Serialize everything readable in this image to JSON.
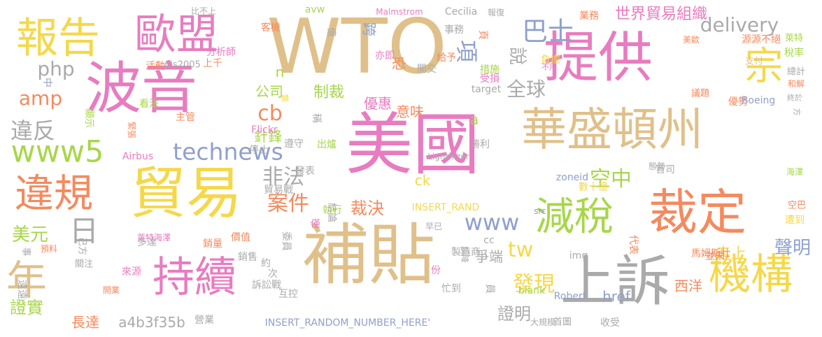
{
  "palette": {
    "pink": "#e87cc0",
    "tan": "#e0c08a",
    "orange": "#f48a5e",
    "gray": "#aaaaaa",
    "blue": "#8fa0cc",
    "yellow": "#f5d84a",
    "green": "#a8d64a"
  },
  "words": [
    {
      "text": "WTO",
      "color": "tan"
    },
    {
      "text": "美國",
      "color": "pink"
    },
    {
      "text": "波音",
      "color": "pink"
    },
    {
      "text": "補貼",
      "color": "tan"
    },
    {
      "text": "提供",
      "color": "pink"
    },
    {
      "text": "上訴",
      "color": "gray"
    },
    {
      "text": "裁定",
      "color": "orange"
    },
    {
      "text": "貿易",
      "color": "yellow"
    },
    {
      "text": "華盛頓州",
      "color": "tan"
    },
    {
      "text": "報告",
      "color": "yellow"
    },
    {
      "text": "歐盟",
      "color": "pink"
    },
    {
      "text": "持續",
      "color": "pink"
    },
    {
      "text": "年",
      "color": "tan"
    },
    {
      "text": "機構",
      "color": "yellow"
    },
    {
      "text": "違規",
      "color": "orange"
    },
    {
      "text": "減稅",
      "color": "green"
    },
    {
      "text": "www5",
      "color": "green"
    },
    {
      "text": "technews",
      "color": "blue"
    },
    {
      "text": "delivery",
      "color": "gray"
    },
    {
      "text": "宗",
      "color": "yellow"
    },
    {
      "text": "巴士",
      "color": "blue"
    },
    {
      "text": "日",
      "color": "gray"
    },
    {
      "text": "www",
      "color": "blue"
    },
    {
      "text": "php",
      "color": "gray"
    },
    {
      "text": "amp",
      "color": "orange"
    },
    {
      "text": "cb",
      "color": "orange"
    },
    {
      "text": "違反",
      "color": "gray"
    },
    {
      "text": "非法",
      "color": "gray"
    },
    {
      "text": "案件",
      "color": "orange"
    },
    {
      "text": "空中",
      "color": "green"
    },
    {
      "text": "tw",
      "color": "yellow"
    },
    {
      "text": "發現",
      "color": "yellow"
    },
    {
      "text": "全球",
      "color": "gray"
    },
    {
      "text": "世界貿易組織",
      "color": "pink"
    },
    {
      "text": "項",
      "color": "blue"
    },
    {
      "text": "說",
      "color": "gray"
    },
    {
      "text": "公司",
      "color": "green"
    },
    {
      "text": "制裁",
      "color": "green"
    },
    {
      "text": "裁決",
      "color": "orange"
    },
    {
      "text": "聲明",
      "color": "blue"
    },
    {
      "text": "美元",
      "color": "green"
    },
    {
      "text": "證實",
      "color": "green"
    },
    {
      "text": "證明",
      "color": "gray"
    },
    {
      "text": "長達",
      "color": "orange"
    },
    {
      "text": "a4b3f35b",
      "color": "gray"
    },
    {
      "text": "西洋",
      "color": "orange"
    },
    {
      "text": "走上",
      "color": "yellow"
    },
    {
      "text": "href",
      "color": "blue"
    },
    {
      "text": "爭端",
      "color": "gray"
    },
    {
      "text": "針鋒",
      "color": "green"
    },
    {
      "text": "意味",
      "color": "orange"
    },
    {
      "text": "優惠",
      "color": "pink"
    },
    {
      "text": "恐",
      "color": "orange"
    },
    {
      "text": "跨",
      "color": "blue"
    },
    {
      "text": "n",
      "color": "green"
    },
    {
      "text": "ck",
      "color": "yellow"
    },
    {
      "text": "a",
      "color": "green"
    },
    {
      "text": "INSERT_RANDOM_NUMBER_HERE'",
      "color": "blue"
    },
    {
      "text": "INSERT_RAND",
      "color": "yellow"
    },
    {
      "text": "執行",
      "color": "green"
    },
    {
      "text": "數十億",
      "color": "yellow"
    },
    {
      "text": "zoneid",
      "color": "blue"
    },
    {
      "text": "src",
      "color": "blue"
    },
    {
      "text": "img",
      "color": "gray"
    },
    {
      "text": "業務",
      "color": "orange"
    },
    {
      "text": "源源不絕",
      "color": "orange"
    },
    {
      "text": "萊特",
      "color": "green"
    },
    {
      "text": "稅率",
      "color": "green"
    },
    {
      "text": "總計",
      "color": "gray"
    },
    {
      "text": "支付",
      "color": "tan"
    },
    {
      "text": "和解",
      "color": "orange"
    },
    {
      "text": "終於",
      "color": "gray"
    },
    {
      "text": "優勢",
      "color": "orange"
    },
    {
      "text": "Boeing",
      "color": "blue"
    },
    {
      "text": "議題",
      "color": "orange"
    },
    {
      "text": "方",
      "color": "gray"
    },
    {
      "text": "美歐",
      "color": "orange"
    },
    {
      "text": "負擔",
      "color": "yellow"
    },
    {
      "text": "不用",
      "color": "pink"
    },
    {
      "text": "措施",
      "color": "green"
    },
    {
      "text": "受損",
      "color": "pink"
    },
    {
      "text": "開交",
      "color": "gray"
    },
    {
      "text": "給予",
      "color": "orange"
    },
    {
      "text": "亦即",
      "color": "pink"
    },
    {
      "text": "事務",
      "color": "gray"
    },
    {
      "text": "頁",
      "color": "orange"
    },
    {
      "text": "報復",
      "color": "gray"
    },
    {
      "text": "Cecilia",
      "color": "gray"
    },
    {
      "text": "Malmstrom",
      "color": "pink"
    },
    {
      "text": "avw",
      "color": "green"
    },
    {
      "text": "億",
      "color": "gray"
    },
    {
      "text": "客機",
      "color": "orange"
    },
    {
      "text": "比不上",
      "color": "gray"
    },
    {
      "text": "分析師",
      "color": "pink"
    },
    {
      "text": "上千",
      "color": "orange"
    },
    {
      "text": "活動",
      "color": "orange"
    },
    {
      "text": "pjs2005",
      "color": "gray"
    },
    {
      "text": "中",
      "color": "blue"
    },
    {
      "text": "顯示",
      "color": "green"
    },
    {
      "text": "看法",
      "color": "green"
    },
    {
      "text": "主管",
      "color": "orange"
    },
    {
      "text": "緊張",
      "color": "orange"
    },
    {
      "text": "Flickr",
      "color": "pink"
    },
    {
      "text": "遵守",
      "color": "gray"
    },
    {
      "text": "出爐",
      "color": "green"
    },
    {
      "text": "停止",
      "color": "gray"
    },
    {
      "text": "Airbus",
      "color": "pink"
    },
    {
      "text": "勝利",
      "color": "gray"
    },
    {
      "text": "Lighthizer",
      "color": "gray"
    },
    {
      "text": "target",
      "color": "gray"
    },
    {
      "text": "稱",
      "color": "gray"
    },
    {
      "text": "類",
      "color": "yellow"
    },
    {
      "text": "發表",
      "color": "gray"
    },
    {
      "text": "貿易戰",
      "color": "gray"
    },
    {
      "text": "結論",
      "color": "gray"
    },
    {
      "text": "僅",
      "color": "pink"
    },
    {
      "text": "早已",
      "color": "gray"
    },
    {
      "text": "cc",
      "color": "gray"
    },
    {
      "text": "製造商",
      "color": "gray"
    },
    {
      "text": "調降",
      "color": "gray"
    },
    {
      "text": "份",
      "color": "pink"
    },
    {
      "text": "忙到",
      "color": "gray"
    },
    {
      "text": "員",
      "color": "gray"
    },
    {
      "text": "blank",
      "color": "green"
    },
    {
      "text": "Robert",
      "color": "blue"
    },
    {
      "text": "大規模",
      "color": "gray"
    },
    {
      "text": "首圖",
      "color": "gray"
    },
    {
      "text": "收受",
      "color": "gray"
    },
    {
      "text": "代表",
      "color": "orange"
    },
    {
      "text": "馬姆斯壯",
      "color": "orange"
    },
    {
      "text": "並未",
      "color": "orange"
    },
    {
      "text": "空巴",
      "color": "orange"
    },
    {
      "text": "遭到",
      "color": "yellow"
    },
    {
      "text": "海澤",
      "color": "green"
    },
    {
      "text": "官司",
      "color": "gray"
    },
    {
      "text": "態勢",
      "color": "gray"
    },
    {
      "text": "價值",
      "color": "orange"
    },
    {
      "text": "銷量",
      "color": "orange"
    },
    {
      "text": "萊特海澤",
      "color": "pink"
    },
    {
      "text": "多達",
      "color": "gray"
    },
    {
      "text": "銷售",
      "color": "gray"
    },
    {
      "text": "委員",
      "color": "gray"
    },
    {
      "text": "約",
      "color": "gray"
    },
    {
      "text": "次",
      "color": "gray"
    },
    {
      "text": "互控",
      "color": "gray"
    },
    {
      "text": "訴訟戰",
      "color": "gray"
    },
    {
      "text": "營業",
      "color": "gray"
    },
    {
      "text": "己方",
      "color": "gray"
    },
    {
      "text": "預料",
      "color": "orange"
    },
    {
      "text": "事",
      "color": "gray"
    },
    {
      "text": "關注",
      "color": "gray"
    },
    {
      "text": "遠遠",
      "color": "gray"
    },
    {
      "text": "開業",
      "color": "orange"
    },
    {
      "text": "來源",
      "color": "pink"
    },
    {
      "text": "添",
      "color": "gray"
    }
  ]
}
